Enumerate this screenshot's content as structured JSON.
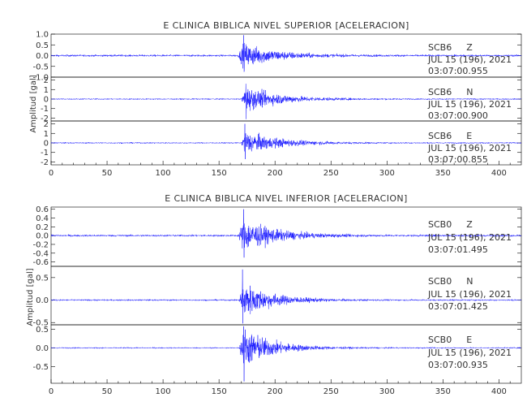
{
  "chart_data": [
    {
      "type": "line",
      "title": "E CLINICA BIBLICA NIVEL SUPERIOR [ACELERACION]",
      "ylabel": "Amplitud [gal]",
      "xlabel": "",
      "xlim": [
        0,
        420
      ],
      "x_ticks": [
        "0",
        "50",
        "100",
        "150",
        "200",
        "250",
        "300",
        "350",
        "400"
      ],
      "line_color": "#1a1aff",
      "grid": false,
      "channels": [
        {
          "station": "SCB6",
          "component": "Z",
          "date": "JUL 15 (196), 2021",
          "time": "03:07:00.955",
          "ylim": [
            -1.0,
            1.0
          ],
          "y_ticks": [
            "1.0",
            "0.5",
            "0.0",
            "-0.5",
            "-1.0"
          ],
          "noise_amp": 0.04,
          "onset_s": 167,
          "peak_s": 172,
          "peak_pos": 0.95,
          "peak_neg": -0.75,
          "coda_decay_s": 28
        },
        {
          "station": "SCB6",
          "component": "N",
          "date": "JUL 15 (196), 2021",
          "time": "03:07:00.900",
          "ylim": [
            -2.3,
            2.3
          ],
          "y_ticks": [
            "2",
            "1",
            "0",
            "-1",
            "-2"
          ],
          "noise_amp": 0.06,
          "onset_s": 170,
          "peak_s": 174,
          "peak_pos": 1.6,
          "peak_neg": -2.1,
          "coda_decay_s": 30
        },
        {
          "station": "SCB6",
          "component": "E",
          "date": "JUL 15 (196), 2021",
          "time": "03:07:00.855",
          "ylim": [
            -2.3,
            2.3
          ],
          "y_ticks": [
            "2",
            "1",
            "0",
            "-1",
            "-2"
          ],
          "noise_amp": 0.06,
          "onset_s": 170,
          "peak_s": 173,
          "peak_pos": 2.0,
          "peak_neg": -1.7,
          "coda_decay_s": 30
        }
      ]
    },
    {
      "type": "line",
      "title": "E CLINICA BIBLICA NIVEL INFERIOR [ACELERACION]",
      "ylabel": "Amplitud [gal]",
      "xlabel": "",
      "xlim": [
        0,
        420
      ],
      "x_ticks": [
        "0",
        "50",
        "100",
        "150",
        "200",
        "250",
        "300",
        "350",
        "400"
      ],
      "line_color": "#1a1aff",
      "grid": false,
      "channels": [
        {
          "station": "SCB0",
          "component": "Z",
          "date": "JUL 15 (196), 2021",
          "time": "03:07:01.495",
          "ylim": [
            -0.7,
            0.65
          ],
          "y_ticks": [
            "0.6",
            "0.4",
            "0.2",
            "0.0",
            "-0.2",
            "-0.4",
            "-0.6"
          ],
          "noise_amp": 0.02,
          "onset_s": 167,
          "peak_s": 172,
          "peak_pos": 0.6,
          "peak_neg": -0.5,
          "coda_decay_s": 28
        },
        {
          "station": "SCB0",
          "component": "N",
          "date": "JUL 15 (196), 2021",
          "time": "03:07:01.425",
          "ylim": [
            -0.55,
            0.75
          ],
          "y_ticks": [
            "0.5",
            "0.0",
            "-0.5"
          ],
          "noise_amp": 0.015,
          "onset_s": 168,
          "peak_s": 171,
          "peak_pos": 0.68,
          "peak_neg": -0.52,
          "coda_decay_s": 25
        },
        {
          "station": "SCB0",
          "component": "E",
          "date": "JUL 15 (196), 2021",
          "time": "03:07:00.935",
          "ylim": [
            -0.95,
            0.62
          ],
          "y_ticks": [
            "0.5",
            "0.0",
            "-0.5"
          ],
          "noise_amp": 0.015,
          "onset_s": 168,
          "peak_s": 172,
          "peak_pos": 0.58,
          "peak_neg": -0.9,
          "coda_decay_s": 25
        }
      ]
    }
  ]
}
